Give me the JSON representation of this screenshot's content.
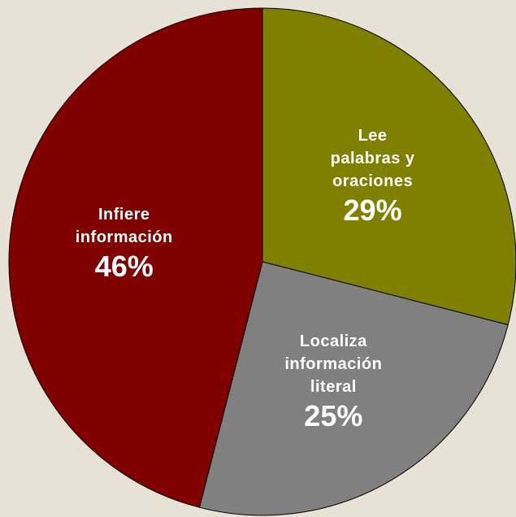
{
  "chart_data": {
    "type": "pie",
    "categories": [
      "Lee\npalabras y\noraciones",
      "Localiza\ninformación\nliteral",
      "Infiere\ninformación"
    ],
    "values": [
      29,
      25,
      46
    ],
    "value_labels": [
      "29%",
      "25%",
      "46%"
    ],
    "colors": [
      "#808000",
      "#808080",
      "#800000"
    ]
  }
}
